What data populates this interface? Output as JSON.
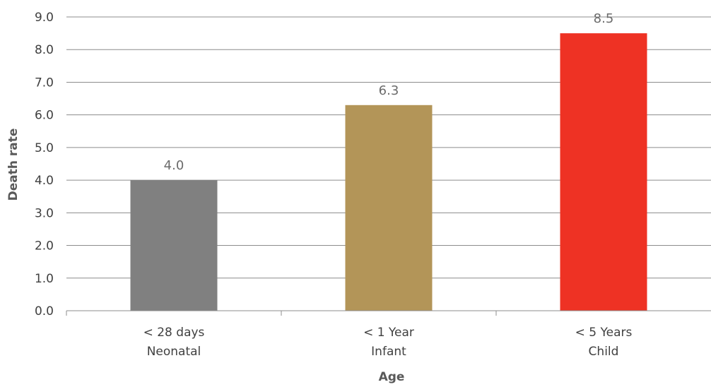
{
  "chart_data": {
    "type": "bar",
    "title": "",
    "xlabel": "Age",
    "ylabel": "Death rate",
    "ylim": [
      0,
      9
    ],
    "yticks": [
      "0.0",
      "1.0",
      "2.0",
      "3.0",
      "4.0",
      "5.0",
      "6.0",
      "7.0",
      "8.0",
      "9.0"
    ],
    "grid": true,
    "legend": "none",
    "categories": [
      {
        "line1": "< 28 days",
        "line2": "Neonatal"
      },
      {
        "line1": "< 1 Year",
        "line2": "Infant"
      },
      {
        "line1": "< 5 Years",
        "line2": "Child"
      }
    ],
    "values": [
      4.0,
      6.3,
      8.5
    ],
    "value_labels": [
      "4.0",
      "6.3",
      "8.5"
    ],
    "colors": [
      "#808080",
      "#b39558",
      "#ee3224"
    ]
  }
}
